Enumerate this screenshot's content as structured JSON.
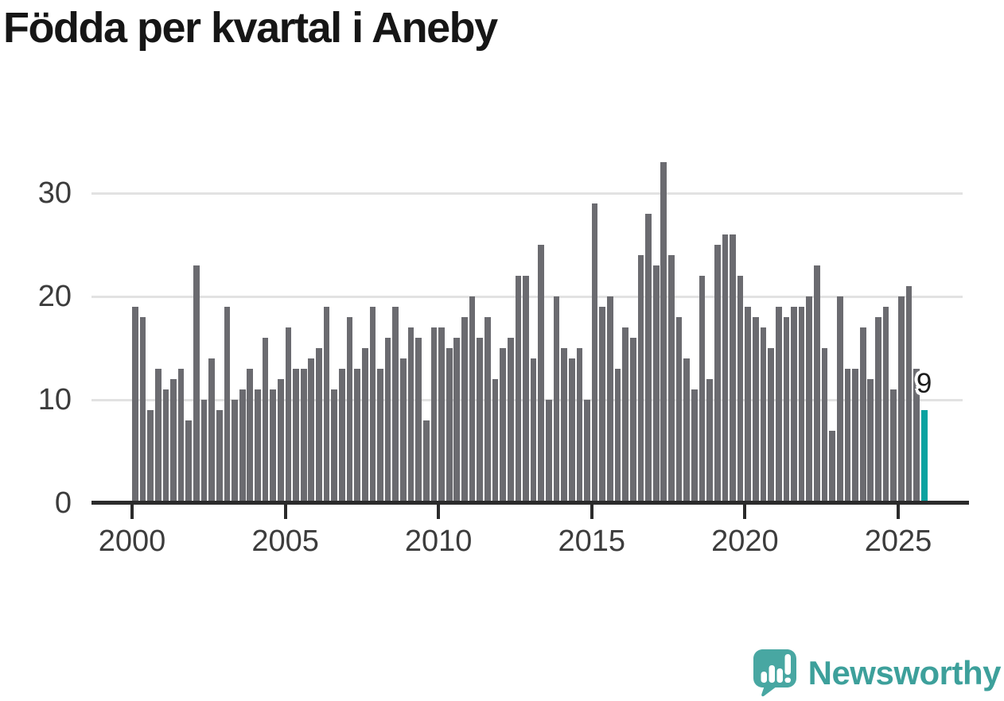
{
  "title": "Födda per kvartal i Aneby",
  "chart_data": {
    "type": "bar",
    "title": "Födda per kvartal i Aneby",
    "x_start": "2000-Q1",
    "frequency": "quarterly",
    "values": [
      19,
      18,
      9,
      13,
      11,
      12,
      13,
      8,
      23,
      10,
      14,
      9,
      19,
      10,
      11,
      13,
      11,
      16,
      11,
      12,
      17,
      13,
      13,
      14,
      15,
      19,
      11,
      13,
      18,
      13,
      15,
      19,
      13,
      16,
      19,
      14,
      17,
      16,
      8,
      17,
      17,
      15,
      16,
      18,
      20,
      16,
      18,
      12,
      15,
      16,
      22,
      22,
      14,
      25,
      10,
      20,
      15,
      14,
      15,
      10,
      29,
      19,
      20,
      13,
      17,
      16,
      24,
      28,
      23,
      33,
      24,
      18,
      14,
      11,
      22,
      12,
      25,
      26,
      26,
      22,
      19,
      18,
      17,
      15,
      19,
      18,
      19,
      19,
      20,
      23,
      15,
      7,
      20,
      13,
      13,
      17,
      12,
      18,
      19,
      11,
      20,
      21,
      13,
      9
    ],
    "highlight": {
      "index": 103,
      "period": "2025-Q4",
      "value": 9,
      "label": "9"
    },
    "xlabel": "",
    "ylabel": "",
    "ylim": [
      0,
      34
    ],
    "yticks": [
      0,
      10,
      20,
      30
    ],
    "xtick_years": [
      2000,
      2005,
      2010,
      2015,
      2020,
      2025
    ],
    "grid": true,
    "legend": false,
    "colors": {
      "bar": "#6b6b70",
      "highlight": "#09a2a0",
      "grid": "#e2e2e2",
      "axis": "#2b2b2b",
      "tick_label": "#3c3c3c",
      "title": "#161616"
    }
  },
  "footer": {
    "brand": "Newsworthy",
    "colors": {
      "wordmark": "#3da09b",
      "bubble": "#48a7a2"
    }
  }
}
